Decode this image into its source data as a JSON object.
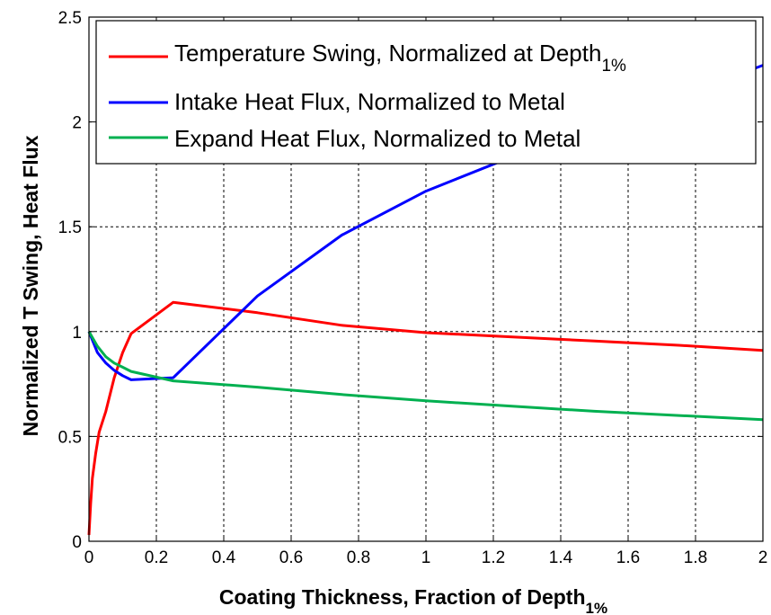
{
  "chart_data": {
    "type": "line",
    "title": "",
    "xlabel": "Coating Thickness, Fraction of Depth",
    "xlabel_sub": "1%",
    "ylabel": "Normalized T Swing, Heat Flux",
    "xlim": [
      0,
      2
    ],
    "ylim": [
      0,
      2.5
    ],
    "xticks": [
      "0",
      "0.2",
      "0.4",
      "0.6",
      "0.8",
      "1",
      "1.2",
      "1.4",
      "1.6",
      "1.8",
      "2"
    ],
    "yticks": [
      "0",
      "0.5",
      "1",
      "1.5",
      "2",
      "2.5"
    ],
    "grid": true,
    "legend_position": "top-right",
    "series": [
      {
        "name": "Temperature Swing, Normalized at Depth",
        "name_sub": "1%",
        "color": "#ff0000",
        "x": [
          0,
          0.005,
          0.01,
          0.02,
          0.03,
          0.05,
          0.075,
          0.1,
          0.125,
          0.25,
          0.5,
          0.75,
          1.0,
          1.25,
          1.5,
          1.75,
          2.0
        ],
        "y": [
          0.03,
          0.18,
          0.3,
          0.42,
          0.52,
          0.62,
          0.78,
          0.9,
          0.99,
          1.14,
          1.09,
          1.03,
          0.995,
          0.975,
          0.955,
          0.935,
          0.91
        ]
      },
      {
        "name": "Intake Heat Flux, Normalized to Metal",
        "color": "#0000ff",
        "x": [
          0,
          0.025,
          0.05,
          0.075,
          0.1,
          0.125,
          0.25,
          0.5,
          0.75,
          1.0,
          1.25,
          1.5,
          1.75,
          2.0
        ],
        "y": [
          1.0,
          0.9,
          0.85,
          0.815,
          0.79,
          0.77,
          0.78,
          1.17,
          1.46,
          1.67,
          1.83,
          1.99,
          2.12,
          2.27
        ]
      },
      {
        "name": "Expand Heat Flux, Normalized to Metal",
        "color": "#00b050",
        "x": [
          0,
          0.025,
          0.05,
          0.075,
          0.1,
          0.125,
          0.25,
          0.5,
          0.75,
          1.0,
          1.25,
          1.5,
          1.75,
          2.0
        ],
        "y": [
          1.0,
          0.93,
          0.88,
          0.85,
          0.83,
          0.81,
          0.765,
          0.735,
          0.7,
          0.67,
          0.645,
          0.62,
          0.6,
          0.58
        ]
      }
    ]
  }
}
